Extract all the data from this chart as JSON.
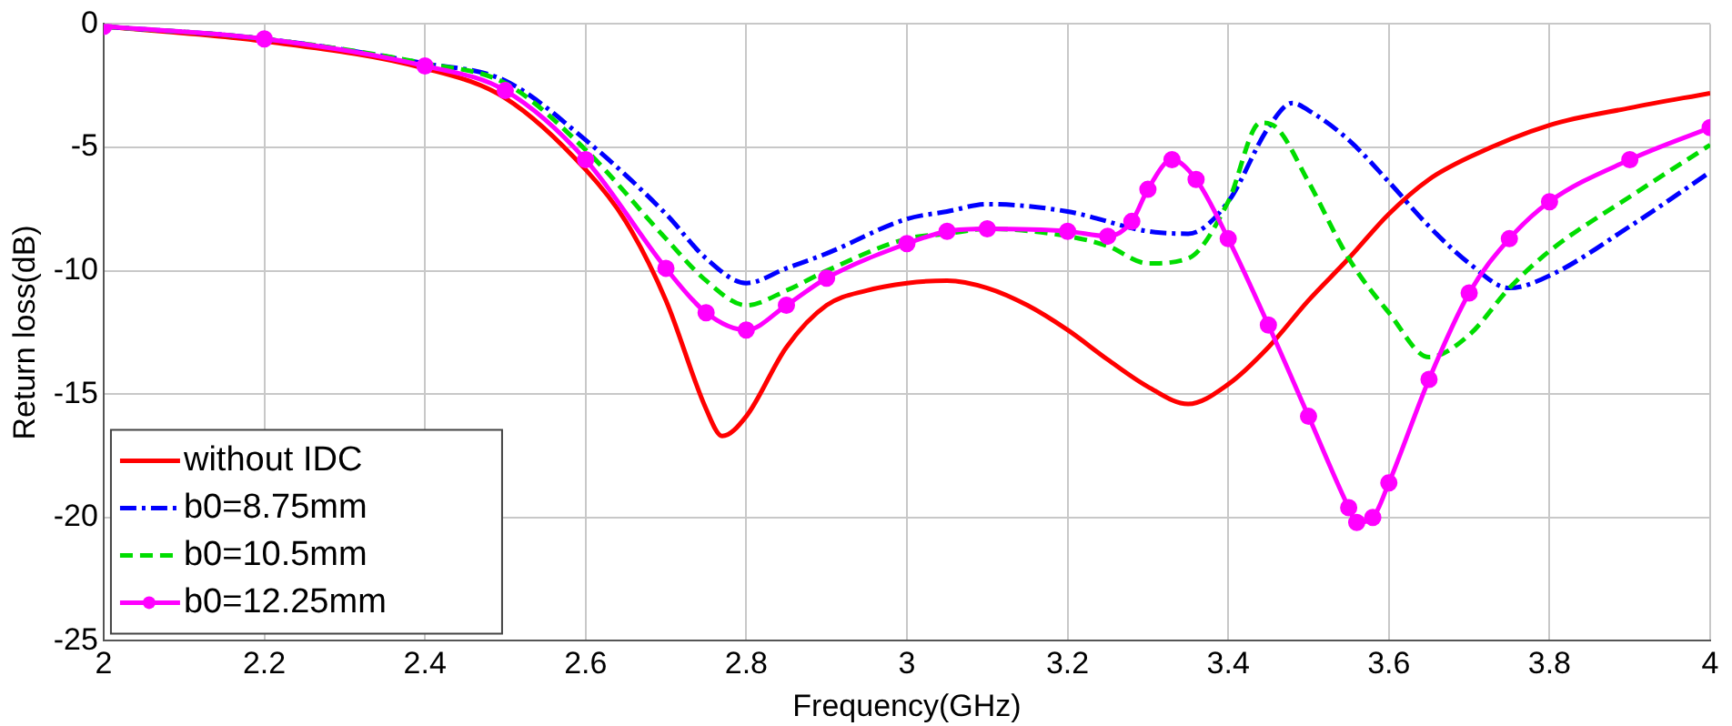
{
  "chart_data": {
    "type": "line",
    "xlabel": "Frequency(GHz)",
    "ylabel": "Return loss(dB)",
    "xlim": [
      2,
      4
    ],
    "xticks": [
      2,
      2.2,
      2.4,
      2.6,
      2.8,
      3,
      3.2,
      3.4,
      3.6,
      3.8,
      4
    ],
    "ylim": [
      -25,
      0
    ],
    "yticks": [
      -25,
      -20,
      -15,
      -10,
      -5,
      0
    ],
    "grid": true,
    "legend": "bottom left",
    "series": [
      {
        "name": "without IDC",
        "color": "#ff0000",
        "line_style": "solid",
        "marker": "none",
        "x": [
          2,
          2.2,
          2.4,
          2.5,
          2.6,
          2.65,
          2.7,
          2.75,
          2.77,
          2.8,
          2.85,
          2.9,
          2.95,
          3,
          3.05,
          3.1,
          3.15,
          3.2,
          3.25,
          3.3,
          3.35,
          3.4,
          3.45,
          3.5,
          3.55,
          3.6,
          3.65,
          3.7,
          3.8,
          3.9,
          4
        ],
        "values": [
          -0.1,
          -0.7,
          -1.8,
          -3,
          -5.9,
          -8,
          -11.2,
          -15.6,
          -16.7,
          -15.9,
          -13.1,
          -11.4,
          -10.8,
          -10.5,
          -10.4,
          -10.7,
          -11.4,
          -12.4,
          -13.6,
          -14.7,
          -15.4,
          -14.6,
          -13.1,
          -11.2,
          -9.5,
          -7.7,
          -6.3,
          -5.4,
          -4.1,
          -3.4,
          -2.8
        ]
      },
      {
        "name": "b0=8.75mm",
        "color": "#0000ff",
        "line_style": "dashdot",
        "marker": "none",
        "x": [
          2,
          2.2,
          2.4,
          2.5,
          2.6,
          2.7,
          2.75,
          2.8,
          2.85,
          2.9,
          3,
          3.05,
          3.1,
          3.2,
          3.3,
          3.35,
          3.4,
          3.45,
          3.48,
          3.5,
          3.55,
          3.6,
          3.65,
          3.7,
          3.75,
          3.8,
          3.9,
          4
        ],
        "values": [
          -0.1,
          -0.6,
          -1.6,
          -2.3,
          -4.7,
          -7.7,
          -9.5,
          -10.5,
          -9.9,
          -9.3,
          -7.9,
          -7.6,
          -7.3,
          -7.6,
          -8.4,
          -8.5,
          -7.2,
          -4.2,
          -3.2,
          -3.5,
          -4.7,
          -6.4,
          -8.2,
          -9.7,
          -10.7,
          -10.2,
          -8.2,
          -6
        ]
      },
      {
        "name": "b0=10.5mm",
        "color": "#00dd00",
        "line_style": "dashed",
        "marker": "none",
        "x": [
          2,
          2.2,
          2.4,
          2.5,
          2.6,
          2.7,
          2.75,
          2.8,
          2.85,
          2.9,
          3,
          3.05,
          3.1,
          3.2,
          3.25,
          3.3,
          3.35,
          3.4,
          3.44,
          3.46,
          3.5,
          3.55,
          3.6,
          3.65,
          3.7,
          3.75,
          3.8,
          3.9,
          4
        ],
        "values": [
          -0.1,
          -0.6,
          -1.6,
          -2.4,
          -5.1,
          -8.7,
          -10.4,
          -11.4,
          -10.8,
          -10,
          -8.7,
          -8.5,
          -8.3,
          -8.6,
          -9,
          -9.7,
          -9.5,
          -7.2,
          -4,
          -4.2,
          -6.4,
          -9.5,
          -11.7,
          -13.5,
          -12.6,
          -10.7,
          -9.2,
          -7,
          -4.9
        ]
      },
      {
        "name": "b0=12.25mm",
        "color": "#ff00ff",
        "line_style": "solid",
        "marker": "circle",
        "x": [
          2,
          2.2,
          2.4,
          2.5,
          2.6,
          2.7,
          2.75,
          2.8,
          2.85,
          2.9,
          3,
          3.05,
          3.1,
          3.2,
          3.25,
          3.28,
          3.3,
          3.33,
          3.36,
          3.4,
          3.45,
          3.5,
          3.55,
          3.56,
          3.58,
          3.6,
          3.65,
          3.7,
          3.75,
          3.8,
          3.9,
          4
        ],
        "values": [
          -0.1,
          -0.6,
          -1.7,
          -2.7,
          -5.5,
          -9.9,
          -11.7,
          -12.4,
          -11.4,
          -10.3,
          -8.9,
          -8.4,
          -8.3,
          -8.4,
          -8.6,
          -8,
          -6.7,
          -5.5,
          -6.3,
          -8.7,
          -12.2,
          -15.9,
          -19.6,
          -20.2,
          -20,
          -18.6,
          -14.4,
          -10.9,
          -8.7,
          -7.2,
          -5.5,
          -4.2
        ]
      }
    ]
  }
}
